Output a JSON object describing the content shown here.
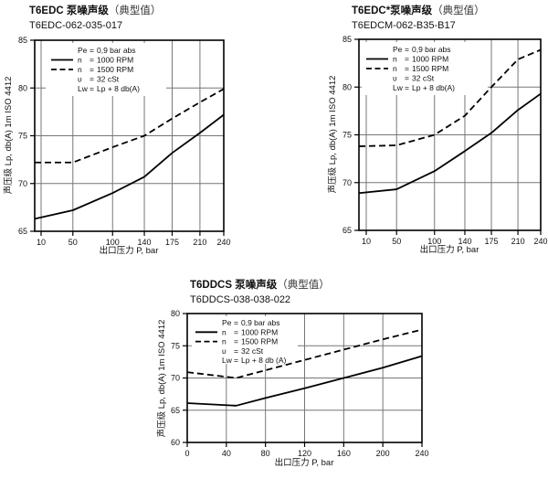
{
  "charts": [
    {
      "title_main": "T6EDC 泵噪声级",
      "title_paren": "（典型值）",
      "subtitle": "T6EDC-062-035-017"
    },
    {
      "title_main": "T6EDC*泵噪声级",
      "title_paren": "（典型值）",
      "subtitle": "T6EDCM-062-B35-B17"
    },
    {
      "title_main": "T6DDCS 泵噪声级",
      "title_paren": "（典型值）",
      "subtitle": "T6DDCS-038-038-022"
    }
  ],
  "chart_data": [
    {
      "type": "line",
      "title": "T6EDC 泵噪声级（典型值） T6EDC-062-035-017",
      "xlabel": "出口压力 P, bar",
      "ylabel": "声压级 Lp, db(A) 1m ISO 4412",
      "xlim": [
        10,
        240
      ],
      "ylim": [
        65,
        85
      ],
      "x_ticks": [
        10,
        50,
        100,
        140,
        175,
        210,
        240
      ],
      "y_ticks": [
        65,
        70,
        75,
        80,
        85
      ],
      "x": [
        10,
        50,
        100,
        140,
        175,
        210,
        240
      ],
      "series": [
        {
          "name": "n = 1000 RPM",
          "style": "solid",
          "values": [
            66.3,
            67.2,
            69.0,
            70.7,
            73.2,
            75.3,
            77.2
          ]
        },
        {
          "name": "n = 1500 RPM",
          "style": "dashed",
          "values": [
            72.2,
            72.2,
            73.8,
            75.0,
            76.8,
            78.5,
            79.9
          ]
        }
      ],
      "legend": [
        {
          "key": "Pe",
          "value": "0,9 bar abs",
          "sample": "none"
        },
        {
          "key": "n",
          "value": "1000 RPM",
          "sample": "solid"
        },
        {
          "key": "n",
          "value": "1500 RPM",
          "sample": "dashed"
        },
        {
          "key": "υ",
          "value": "32 cSt",
          "sample": "none"
        },
        {
          "key": "Lw",
          "value": "Lp + 8 db(A)",
          "sample": "none"
        }
      ],
      "grid": "on",
      "legend_position": "top-left-inside"
    },
    {
      "type": "line",
      "title": "T6EDC*泵噪声级（典型值） T6EDCM-062-B35-B17",
      "xlabel": "出口压力 P, bar",
      "ylabel": "声压级 Lp, db(A) 1m ISO 4412",
      "xlim": [
        10,
        240
      ],
      "ylim": [
        65,
        85
      ],
      "x_ticks": [
        10,
        50,
        100,
        140,
        175,
        210,
        240
      ],
      "y_ticks": [
        65,
        70,
        75,
        80,
        85
      ],
      "x": [
        10,
        50,
        100,
        140,
        175,
        210,
        240
      ],
      "series": [
        {
          "name": "n = 1000 RPM",
          "style": "solid",
          "values": [
            68.9,
            69.3,
            71.2,
            73.3,
            75.2,
            77.6,
            79.3
          ]
        },
        {
          "name": "n = 1500 RPM",
          "style": "dashed",
          "values": [
            73.8,
            73.9,
            75.0,
            77.0,
            80.0,
            82.9,
            83.9
          ]
        }
      ],
      "legend": [
        {
          "key": "Pe",
          "value": "0,9 bar abs",
          "sample": "none"
        },
        {
          "key": "n",
          "value": "1000 RPM",
          "sample": "solid"
        },
        {
          "key": "n",
          "value": "1500 RPM",
          "sample": "dashed"
        },
        {
          "key": "υ",
          "value": "32 cSt",
          "sample": "none"
        },
        {
          "key": "Lw",
          "value": "Lp + 8 db(A)",
          "sample": "none"
        }
      ],
      "grid": "on",
      "legend_position": "top-left-inside"
    },
    {
      "type": "line",
      "title": "T6DDCS 泵噪声级（典型值） T6DDCS-038-038-022",
      "xlabel": "出口压力 P, bar",
      "ylabel": "声压级 Lp, db(A) 1m ISO 4412",
      "xlim": [
        0,
        240
      ],
      "ylim": [
        60,
        80
      ],
      "x_ticks": [
        0,
        40,
        80,
        120,
        160,
        200,
        240
      ],
      "y_ticks": [
        60,
        65,
        70,
        75,
        80
      ],
      "x": [
        0,
        50,
        80,
        120,
        160,
        200,
        240
      ],
      "series": [
        {
          "name": "n = 1000 RPM",
          "style": "solid",
          "values": [
            66.1,
            65.7,
            66.9,
            68.4,
            70.0,
            71.6,
            73.4
          ]
        },
        {
          "name": "n = 1500 RPM",
          "style": "dashed",
          "values": [
            70.9,
            70.0,
            71.2,
            72.8,
            74.4,
            76.0,
            77.5
          ]
        }
      ],
      "legend": [
        {
          "key": "Pe",
          "value": "0,9 bar abs",
          "sample": "none"
        },
        {
          "key": "n",
          "value": "1000 RPM",
          "sample": "solid"
        },
        {
          "key": "n",
          "value": "1500 RPM",
          "sample": "dashed"
        },
        {
          "key": "υ",
          "value": "32 cSt",
          "sample": "none"
        },
        {
          "key": "Lw",
          "value": "Lp + 8 db (A)",
          "sample": "none"
        }
      ],
      "grid": "on",
      "legend_position": "top-left-inside"
    }
  ],
  "colors": {
    "curve": "#000000",
    "border": "#000000",
    "grid": "#777777",
    "text": "#111111",
    "background": "#ffffff"
  }
}
